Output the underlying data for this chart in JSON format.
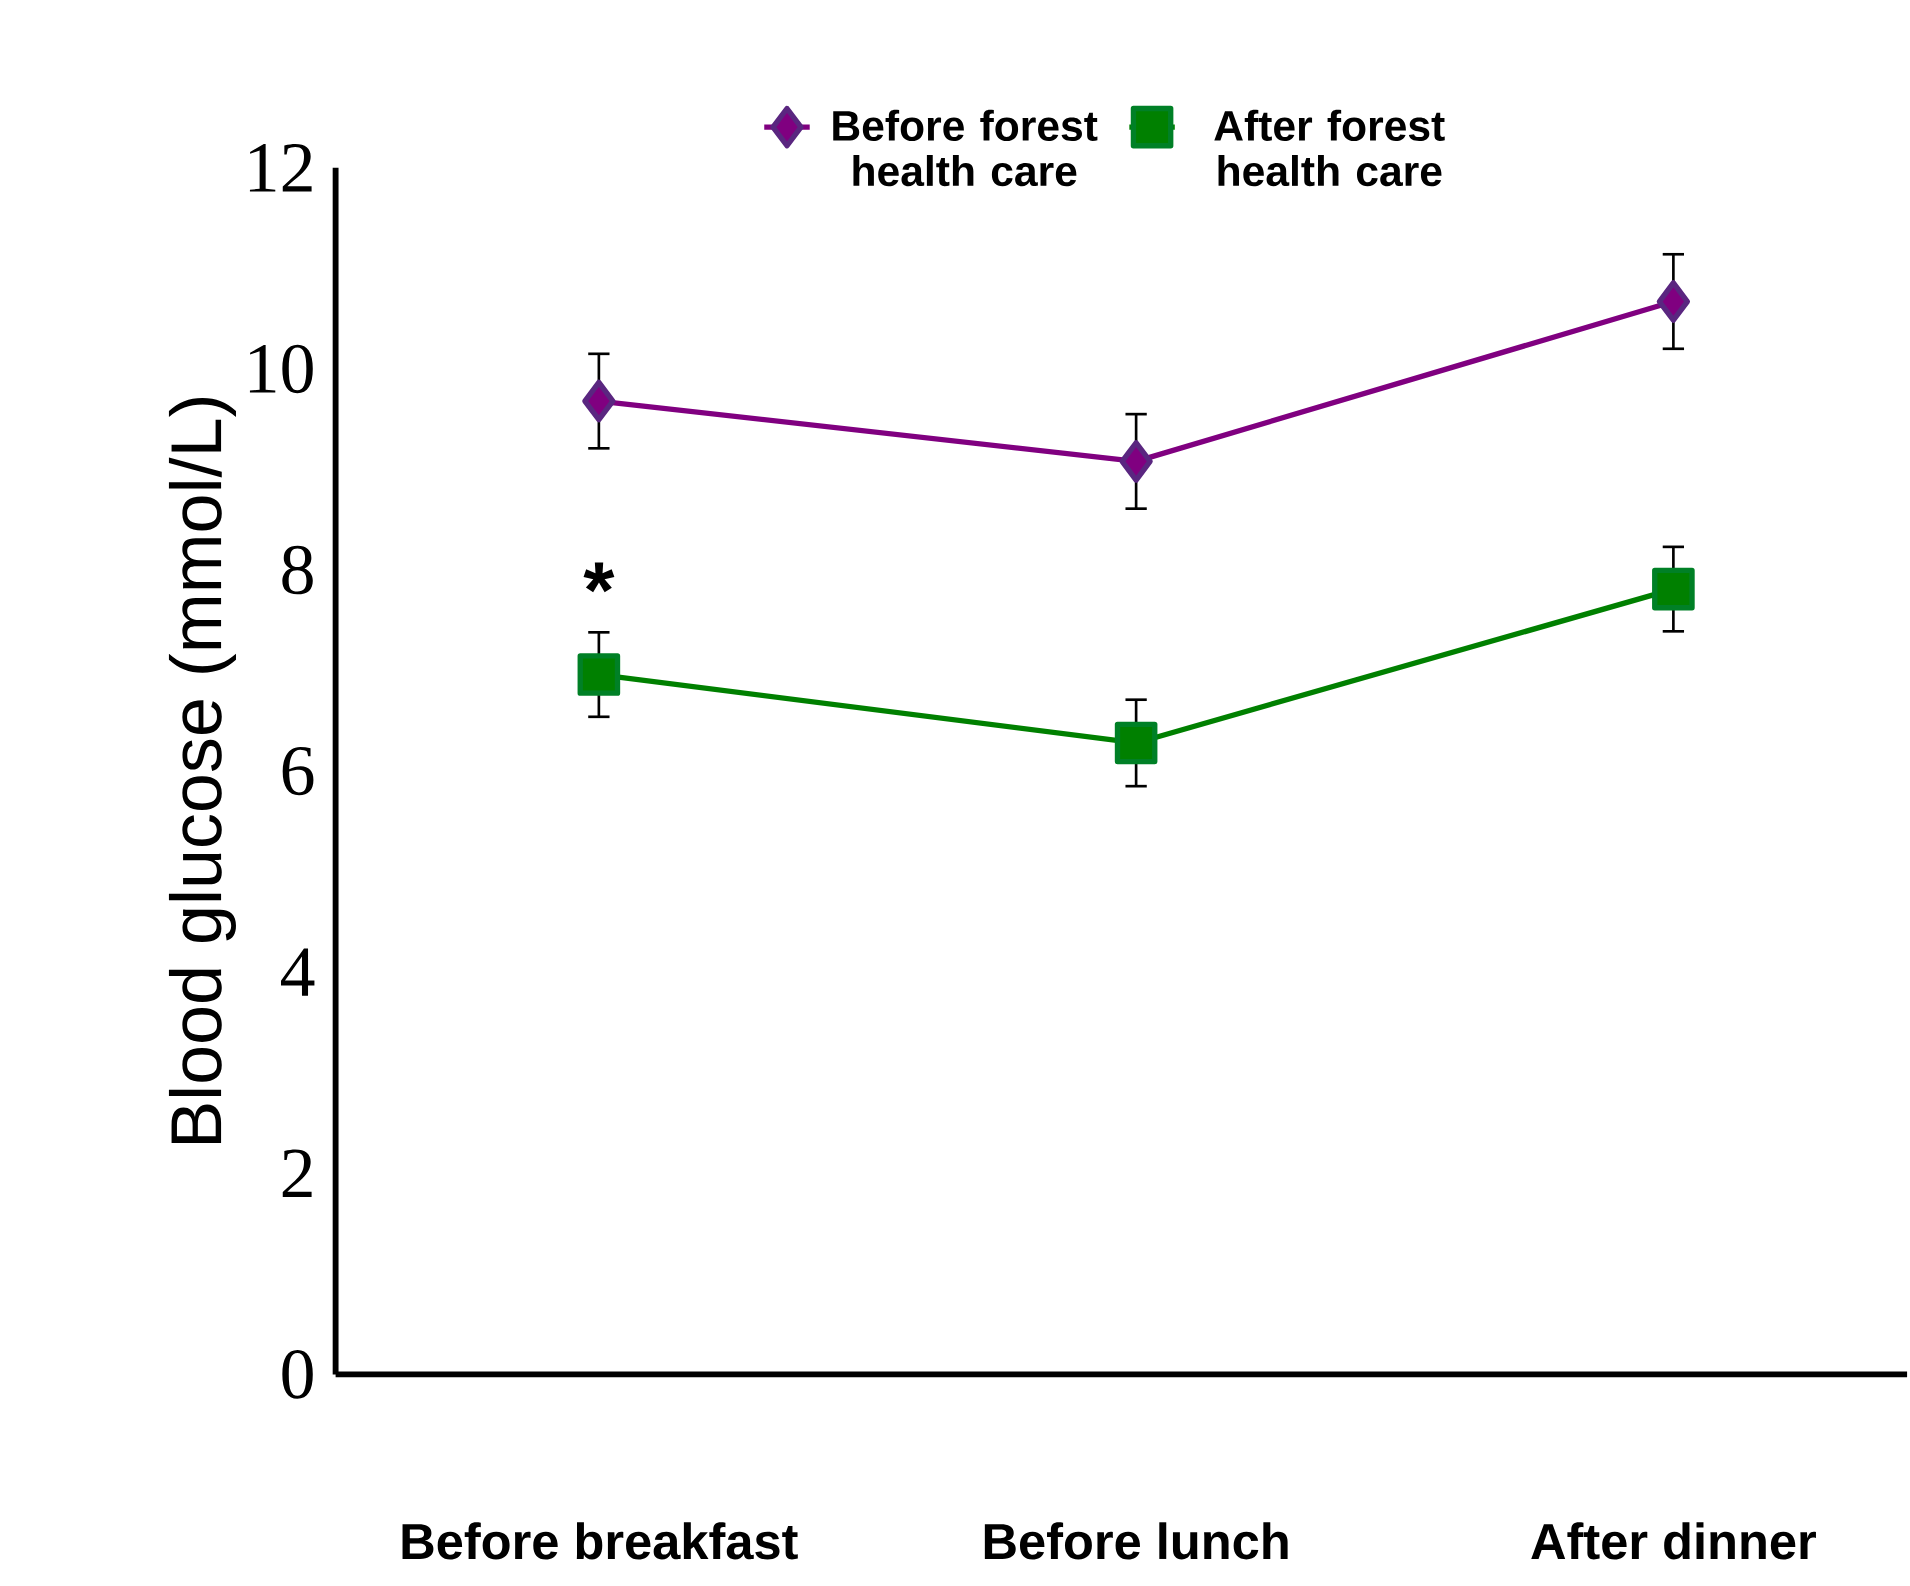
{
  "chart_data": {
    "type": "line",
    "ylabel": "Blood glucose (mmol/L)",
    "categories": [
      "Before breakfast",
      "Before lunch",
      "After dinner"
    ],
    "series": [
      {
        "name": "Before forest health care",
        "color": "#800080",
        "marker": "diamond",
        "values": [
          9.68,
          9.08,
          10.67
        ],
        "errors": [
          0.47,
          0.47,
          0.47
        ]
      },
      {
        "name": "After forest health care",
        "color": "#008000",
        "marker": "square",
        "values": [
          6.96,
          6.28,
          7.81
        ],
        "errors": [
          0.42,
          0.43,
          0.42
        ]
      }
    ],
    "ylim": [
      0,
      12
    ],
    "yticks": [
      0,
      2,
      4,
      6,
      8,
      10,
      12
    ],
    "grid": false,
    "legend": "top",
    "line_style": "solid",
    "annotations": [
      "*"
    ]
  }
}
